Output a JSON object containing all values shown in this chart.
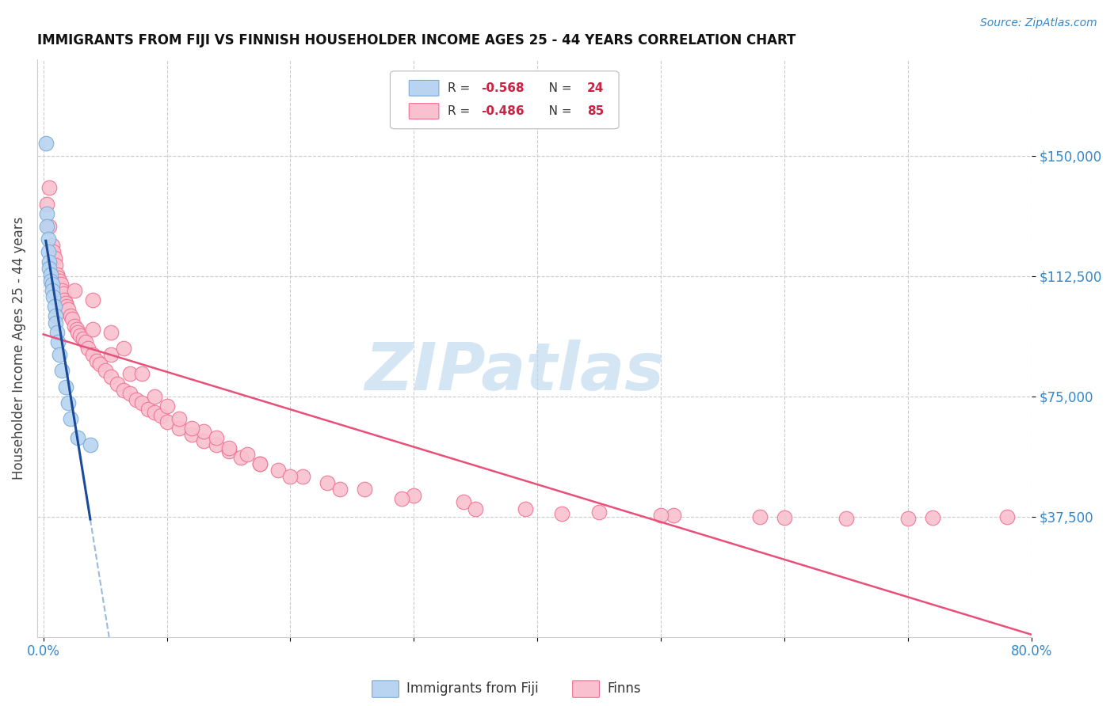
{
  "title": "IMMIGRANTS FROM FIJI VS FINNISH HOUSEHOLDER INCOME AGES 25 - 44 YEARS CORRELATION CHART",
  "source": "Source: ZipAtlas.com",
  "ylabel": "Householder Income Ages 25 - 44 years",
  "ytick_labels": [
    "$37,500",
    "$75,000",
    "$112,500",
    "$150,000"
  ],
  "ytick_values": [
    37500,
    75000,
    112500,
    150000
  ],
  "ymin": 0,
  "ymax": 180000,
  "xmin": 0.0,
  "xmax": 0.8,
  "legend_fiji_r": "-0.568",
  "legend_fiji_n": "24",
  "legend_finns_r": "-0.486",
  "legend_finns_n": "85",
  "fiji_color": "#b8d4f0",
  "fiji_edge_color": "#7aaad8",
  "fiji_line_color": "#1a4a9a",
  "fiji_line_dashed_color": "#99bbdd",
  "finns_color": "#f9c0cf",
  "finns_edge_color": "#f07090",
  "finns_line_color": "#e8507a",
  "watermark_color": "#b8d4ee",
  "fiji_scatter_x": [
    0.002,
    0.003,
    0.003,
    0.004,
    0.004,
    0.005,
    0.005,
    0.006,
    0.006,
    0.007,
    0.007,
    0.008,
    0.009,
    0.01,
    0.01,
    0.011,
    0.012,
    0.013,
    0.015,
    0.018,
    0.02,
    0.022,
    0.028,
    0.038
  ],
  "fiji_scatter_y": [
    154000,
    132000,
    128000,
    124000,
    120000,
    117000,
    115000,
    113000,
    111000,
    110000,
    108000,
    106000,
    103000,
    100000,
    98000,
    95000,
    92000,
    88000,
    83000,
    78000,
    73000,
    68000,
    62000,
    60000
  ],
  "finns_scatter_x": [
    0.003,
    0.005,
    0.007,
    0.008,
    0.009,
    0.01,
    0.011,
    0.012,
    0.013,
    0.014,
    0.015,
    0.016,
    0.017,
    0.018,
    0.019,
    0.02,
    0.022,
    0.023,
    0.025,
    0.027,
    0.028,
    0.03,
    0.032,
    0.034,
    0.036,
    0.04,
    0.043,
    0.046,
    0.05,
    0.055,
    0.06,
    0.065,
    0.07,
    0.075,
    0.08,
    0.085,
    0.09,
    0.095,
    0.1,
    0.11,
    0.12,
    0.13,
    0.14,
    0.15,
    0.16,
    0.175,
    0.19,
    0.21,
    0.23,
    0.26,
    0.3,
    0.34,
    0.39,
    0.45,
    0.51,
    0.58,
    0.65,
    0.72
  ],
  "finns_scatter_y": [
    135000,
    128000,
    122000,
    120000,
    118000,
    116000,
    113000,
    112000,
    111000,
    110000,
    108000,
    107000,
    105000,
    104000,
    103000,
    102000,
    100000,
    99000,
    97000,
    96000,
    95000,
    94000,
    93000,
    92000,
    90000,
    88000,
    86000,
    85000,
    83000,
    81000,
    79000,
    77000,
    76000,
    74000,
    73000,
    71000,
    70000,
    69000,
    67000,
    65000,
    63000,
    61000,
    60000,
    58000,
    56000,
    54000,
    52000,
    50000,
    48000,
    46000,
    44000,
    42000,
    40000,
    39000,
    38000,
    37500,
    37000,
    37200
  ],
  "finns_scatter_extra_x": [
    0.025,
    0.04,
    0.055,
    0.07,
    0.09,
    0.11,
    0.13,
    0.15,
    0.175,
    0.2,
    0.24,
    0.29,
    0.35,
    0.42,
    0.5,
    0.6,
    0.7,
    0.78,
    0.04,
    0.055,
    0.065,
    0.08,
    0.1,
    0.12,
    0.14,
    0.165,
    0.005
  ],
  "finns_scatter_extra_y": [
    108000,
    96000,
    88000,
    82000,
    75000,
    68000,
    64000,
    59000,
    54000,
    50000,
    46000,
    43000,
    40000,
    38500,
    37800,
    37200,
    37000,
    37500,
    105000,
    95000,
    90000,
    82000,
    72000,
    65000,
    62000,
    57000,
    140000
  ]
}
